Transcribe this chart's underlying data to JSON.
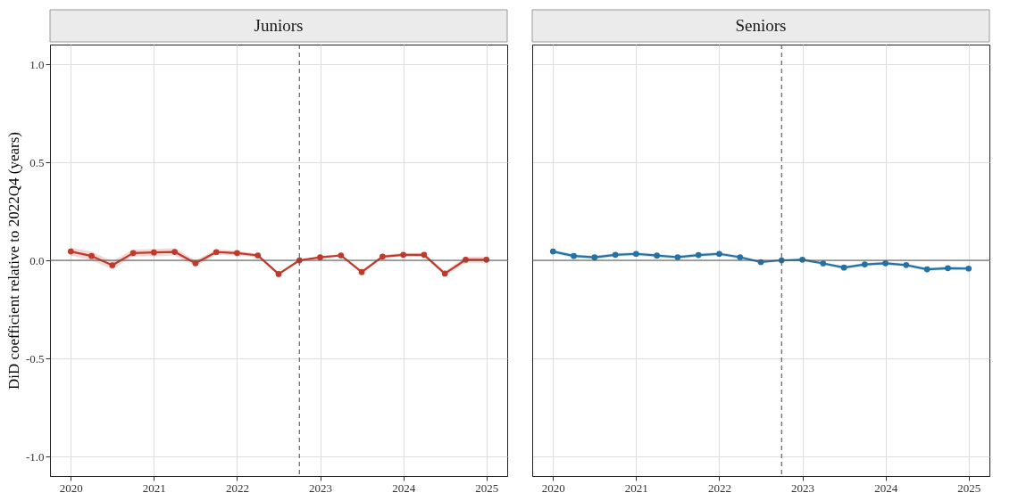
{
  "chart_data": [
    {
      "type": "line",
      "title": "Juniors",
      "ylabel": "DiD coefficient relative to 2022Q4 (years)",
      "x": [
        2020,
        2020.25,
        2020.5,
        2020.75,
        2021,
        2021.25,
        2021.5,
        2021.75,
        2022,
        2022.25,
        2022.5,
        2022.75,
        2023,
        2023.25,
        2023.5,
        2023.75,
        2024,
        2024.25,
        2024.5,
        2024.75,
        2025
      ],
      "series": [
        {
          "color": "#c0392b",
          "values": [
            0.045,
            0.022,
            -0.025,
            0.037,
            0.04,
            0.043,
            -0.015,
            0.042,
            0.037,
            0.025,
            -0.07,
            0,
            0.015,
            0.025,
            -0.06,
            0.019,
            0.028,
            0.028,
            -0.068,
            0.003,
            0.003
          ],
          "lower": [
            0.025,
            0.0,
            -0.045,
            0.02,
            0.022,
            0.025,
            -0.03,
            0.028,
            0.025,
            0.015,
            -0.078,
            0,
            0.008,
            0.018,
            -0.068,
            0.01,
            0.018,
            0.018,
            -0.08,
            -0.012,
            -0.012
          ],
          "upper": [
            0.065,
            0.044,
            -0.005,
            0.054,
            0.058,
            0.061,
            0.0,
            0.056,
            0.049,
            0.035,
            -0.062,
            0,
            0.022,
            0.032,
            -0.052,
            0.028,
            0.038,
            0.038,
            -0.056,
            0.018,
            0.018
          ]
        }
      ],
      "xlim": [
        2019.75,
        2025.25
      ],
      "xticks": [
        2020,
        2021,
        2022,
        2023,
        2024,
        2025
      ],
      "ylim": [
        -1.1,
        1.1
      ],
      "yticks": [
        {
          "value": -1,
          "label": "-1.0"
        },
        {
          "value": -0.5,
          "label": "-0.5"
        },
        {
          "value": 0,
          "label": "0.0"
        },
        {
          "value": 0.5,
          "label": "0.5"
        },
        {
          "value": 1,
          "label": "1.0"
        }
      ],
      "ref_lines": [
        {
          "axis": "y",
          "value": 0,
          "color": "#555555"
        },
        {
          "axis": "x",
          "value": 2022.75,
          "color": "#555555",
          "line_style": "dashed"
        }
      ],
      "marker": "circle",
      "grid": true
    },
    {
      "type": "line",
      "title": "Seniors",
      "x": [
        2020,
        2020.25,
        2020.5,
        2020.75,
        2021,
        2021.25,
        2021.5,
        2021.75,
        2022,
        2022.25,
        2022.5,
        2022.75,
        2023,
        2023.25,
        2023.5,
        2023.75,
        2024,
        2024.25,
        2024.5,
        2024.75,
        2025
      ],
      "series": [
        {
          "color": "#2471a3",
          "values": [
            0.045,
            0.022,
            0.015,
            0.028,
            0.033,
            0.024,
            0.016,
            0.027,
            0.033,
            0.016,
            -0.009,
            0,
            0.003,
            -0.016,
            -0.037,
            -0.021,
            -0.015,
            -0.024,
            -0.046,
            -0.04,
            -0.042
          ],
          "lower": [
            0.035,
            0.013,
            0.006,
            0.019,
            0.024,
            0.015,
            0.007,
            0.018,
            0.024,
            0.007,
            -0.016,
            0,
            -0.004,
            -0.024,
            -0.045,
            -0.029,
            -0.023,
            -0.032,
            -0.055,
            -0.049,
            -0.051
          ],
          "upper": [
            0.055,
            0.031,
            0.024,
            0.037,
            0.042,
            0.033,
            0.025,
            0.036,
            0.042,
            0.025,
            -0.002,
            0,
            0.01,
            -0.008,
            -0.029,
            -0.013,
            -0.007,
            -0.016,
            -0.037,
            -0.031,
            -0.033
          ]
        }
      ],
      "xlim": [
        2019.75,
        2025.25
      ],
      "xticks": [
        2020,
        2021,
        2022,
        2023,
        2024,
        2025
      ],
      "ylim": [
        -1.1,
        1.1
      ],
      "yticks": [
        -1,
        -0.5,
        0,
        0.5,
        1
      ],
      "tick_labels": "x",
      "ref_lines": [
        {
          "axis": "y",
          "value": 0,
          "color": "#555555"
        },
        {
          "axis": "x",
          "value": 2022.75,
          "color": "#555555",
          "line_style": "dashed"
        }
      ],
      "marker": "circle",
      "grid": true
    }
  ]
}
